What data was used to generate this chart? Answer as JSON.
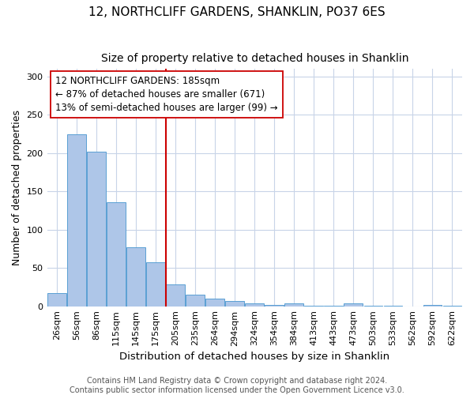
{
  "title": "12, NORTHCLIFF GARDENS, SHANKLIN, PO37 6ES",
  "subtitle": "Size of property relative to detached houses in Shanklin",
  "xlabel": "Distribution of detached houses by size in Shanklin",
  "ylabel": "Number of detached properties",
  "bar_labels": [
    "26sqm",
    "56sqm",
    "86sqm",
    "115sqm",
    "145sqm",
    "175sqm",
    "205sqm",
    "235sqm",
    "264sqm",
    "294sqm",
    "324sqm",
    "354sqm",
    "384sqm",
    "413sqm",
    "443sqm",
    "473sqm",
    "503sqm",
    "533sqm",
    "562sqm",
    "592sqm",
    "622sqm"
  ],
  "bar_values": [
    17,
    224,
    202,
    136,
    77,
    57,
    28,
    15,
    10,
    7,
    4,
    2,
    4,
    1,
    1,
    4,
    1,
    1,
    0,
    2,
    1
  ],
  "bar_color": "#aec6e8",
  "bar_edgecolor": "#5a9fd4",
  "highlight_bar_index": 5,
  "highlight_color": "#cc0000",
  "annotation_line1": "12 NORTHCLIFF GARDENS: 185sqm",
  "annotation_line2": "← 87% of detached houses are smaller (671)",
  "annotation_line3": "13% of semi-detached houses are larger (99) →",
  "annotation_box_color": "#ffffff",
  "annotation_box_edgecolor": "#cc0000",
  "footer_lines": [
    "Contains HM Land Registry data © Crown copyright and database right 2024.",
    "Contains public sector information licensed under the Open Government Licence v3.0."
  ],
  "ylim": [
    0,
    310
  ],
  "title_fontsize": 11,
  "subtitle_fontsize": 10,
  "xlabel_fontsize": 9.5,
  "ylabel_fontsize": 9,
  "tick_fontsize": 8,
  "annotation_fontsize": 8.5,
  "footer_fontsize": 7,
  "background_color": "#ffffff",
  "grid_color": "#c8d4e8"
}
